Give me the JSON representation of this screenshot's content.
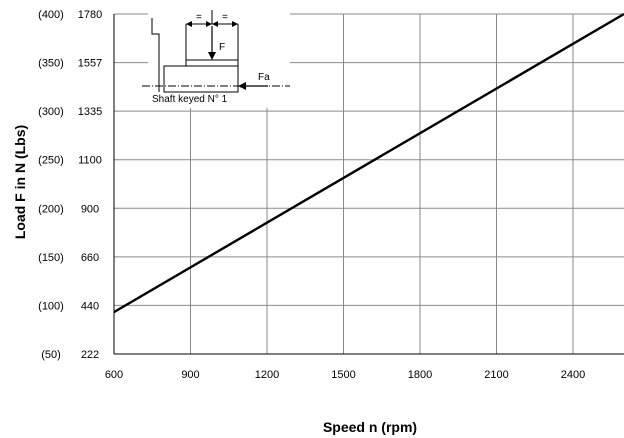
{
  "chart_data": {
    "type": "line",
    "xlabel": "Speed n  (rpm)",
    "ylabel": "Load F in N (Lbs)",
    "x_ticks": [
      600,
      900,
      1200,
      1500,
      1800,
      2100,
      2400
    ],
    "xlim": [
      600,
      2600
    ],
    "y_ticks": [
      {
        "n": "1780",
        "lbs": "(400)"
      },
      {
        "n": "1557",
        "lbs": "(350)"
      },
      {
        "n": "1335",
        "lbs": "(300)"
      },
      {
        "n": "1100",
        "lbs": "(250)"
      },
      {
        "n": "900",
        "lbs": "(200)"
      },
      {
        "n": "660",
        "lbs": "(150)"
      },
      {
        "n": "440",
        "lbs": "(100)"
      },
      {
        "n": "222",
        "lbs": "(50)"
      }
    ],
    "series": [
      {
        "x": [
          600,
          2600
        ],
        "y": [
          410,
          1780
        ]
      }
    ],
    "grid": true,
    "inset": {
      "label": "Shaft keyed N° 1",
      "force_label": "F",
      "axial_label": "Fa",
      "equal_left": "=",
      "equal_right": "="
    }
  }
}
